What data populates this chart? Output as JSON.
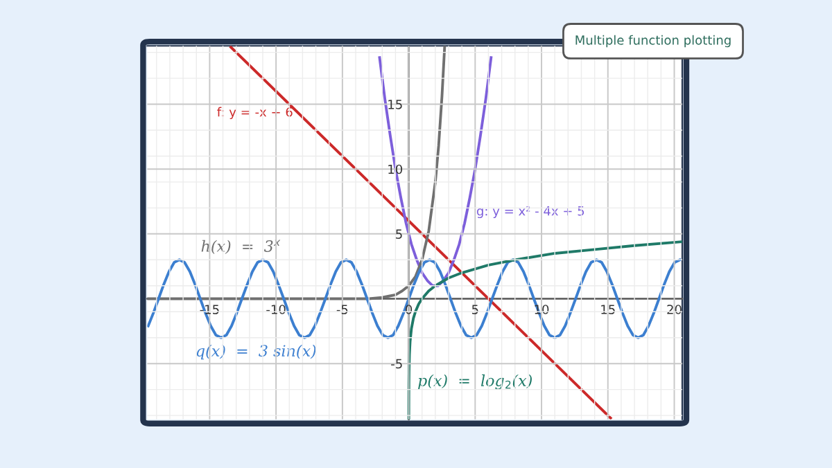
{
  "chart_data": {
    "type": "line",
    "title": "Multiple function plotting",
    "xlim": [
      -19.7,
      20.6
    ],
    "ylim": [
      -9.3,
      19.5
    ],
    "xticks": [
      -15,
      -10,
      -5,
      0,
      5,
      10,
      15,
      20
    ],
    "yticks": [
      -5,
      5,
      10,
      15
    ],
    "grid": true,
    "marker": "none",
    "line_style": "solid",
    "series": [
      {
        "color": "#cc2929",
        "x": [
          -13.4,
          15.2
        ],
        "values": [
          19.4,
          -9.2
        ]
      },
      {
        "color": "#7d5fdb",
        "x": [
          -2.2,
          -1.8,
          -1.4,
          -1,
          -0.6,
          -0.2,
          0.2,
          0.6,
          1,
          1.4,
          1.8,
          2,
          2.2,
          2.6,
          3,
          3.4,
          3.8,
          4.2,
          4.6,
          5,
          5.4,
          5.8,
          6.2
        ],
        "values": [
          18.6,
          15.4,
          12.6,
          10,
          7.8,
          5.8,
          4.2,
          3,
          2,
          1.4,
          1,
          1,
          1,
          1.4,
          2,
          3,
          4.2,
          5.8,
          7.8,
          10,
          12.6,
          15.4,
          18.6
        ]
      },
      {
        "color": "#707070",
        "x": [
          -19.7,
          -4,
          -3,
          -2,
          -1.5,
          -1,
          -0.5,
          0,
          0.5,
          1,
          1.5,
          2,
          2.25,
          2.5,
          2.7
        ],
        "values": [
          0,
          0,
          0,
          0.1,
          0.2,
          0.3,
          0.6,
          1,
          1.7,
          3,
          5.2,
          9,
          11.8,
          15.6,
          19.4
        ]
      },
      {
        "color": "#3c7fd0",
        "x": [
          -19.63,
          -19.24,
          -18.85,
          -18.46,
          -18.06,
          -17.67,
          -17.28,
          -16.89,
          -16.49,
          -16.1,
          -15.71,
          -15.32,
          -14.92,
          -14.53,
          -14.14,
          -13.74,
          -13.35,
          -12.96,
          -12.57,
          -12.17,
          -11.78,
          -11.39,
          -11.0,
          -10.6,
          -10.21,
          -9.82,
          -9.42,
          -9.03,
          -8.64,
          -8.25,
          -7.85,
          -7.46,
          -7.07,
          -6.68,
          -6.28,
          -5.89,
          -5.5,
          -5.11,
          -4.71,
          -4.32,
          -3.93,
          -3.53,
          -3.14,
          -2.75,
          -2.36,
          -1.96,
          -1.57,
          -1.18,
          -0.79,
          -0.39,
          0,
          0.39,
          0.79,
          1.18,
          1.57,
          1.96,
          2.36,
          2.75,
          3.14,
          3.53,
          3.93,
          4.32,
          4.71,
          5.11,
          5.5,
          5.89,
          6.28,
          6.68,
          7.07,
          7.46,
          7.85,
          8.25,
          8.64,
          9.03,
          9.42,
          9.82,
          10.21,
          10.6,
          11.0,
          11.39,
          11.78,
          12.17,
          12.57,
          12.96,
          13.35,
          13.74,
          14.14,
          14.53,
          14.92,
          15.32,
          15.71,
          16.1,
          16.49,
          16.89,
          17.28,
          17.67,
          18.06,
          18.46,
          18.85,
          19.24,
          19.63,
          20.03,
          20.42
        ],
        "values": [
          -2.1,
          -1.1,
          0,
          1.1,
          2.1,
          2.8,
          3,
          2.8,
          2.1,
          1.1,
          0,
          -1.1,
          -2.1,
          -2.8,
          -3,
          -2.8,
          -2.1,
          -1.1,
          0,
          1.1,
          2.1,
          2.8,
          3,
          2.8,
          2.1,
          1.1,
          0,
          -1.1,
          -2.1,
          -2.8,
          -3,
          -2.8,
          -2.1,
          -1.1,
          0,
          1.1,
          2.1,
          2.8,
          3,
          2.8,
          2.1,
          1.1,
          0,
          -1.1,
          -2.1,
          -2.8,
          -3,
          -2.8,
          -2.1,
          -1.1,
          0,
          1.1,
          2.1,
          2.8,
          3,
          2.8,
          2.1,
          1.1,
          0,
          -1.1,
          -2.1,
          -2.8,
          -3,
          -2.8,
          -2.1,
          -1.1,
          0,
          1.1,
          2.1,
          2.8,
          3,
          2.8,
          2.1,
          1.1,
          0,
          -1.1,
          -2.1,
          -2.8,
          -3,
          -2.8,
          -2.1,
          -1.1,
          0,
          1.1,
          2.1,
          2.8,
          3,
          2.8,
          2.1,
          1.1,
          0,
          -1.1,
          -2.1,
          -2.8,
          -3,
          -2.8,
          -2.1,
          -1.1,
          0,
          1.1,
          2.1,
          2.8,
          3
        ]
      },
      {
        "color": "#1f7a68",
        "x": [
          0.0016,
          0.003,
          0.005,
          0.01,
          0.02,
          0.05,
          0.1,
          0.2,
          0.35,
          0.5,
          0.75,
          1,
          1.5,
          2,
          3,
          4,
          6,
          8,
          11,
          14,
          17,
          20.6
        ],
        "values": [
          -9.3,
          -8.4,
          -7.6,
          -6.6,
          -5.6,
          -4.3,
          -3.3,
          -2.3,
          -1.5,
          -1,
          -0.4,
          0,
          0.6,
          1,
          1.6,
          2,
          2.6,
          3,
          3.5,
          3.8,
          4.1,
          4.4
        ]
      }
    ],
    "annotations": [
      "f: y = -x + 6",
      "g: y = x² - 4x + 5",
      "h(x)  =  3$^{x}$",
      "q(x)  =  3 sin(x)",
      "p(x)  =  log$_{2}$(x)"
    ]
  }
}
